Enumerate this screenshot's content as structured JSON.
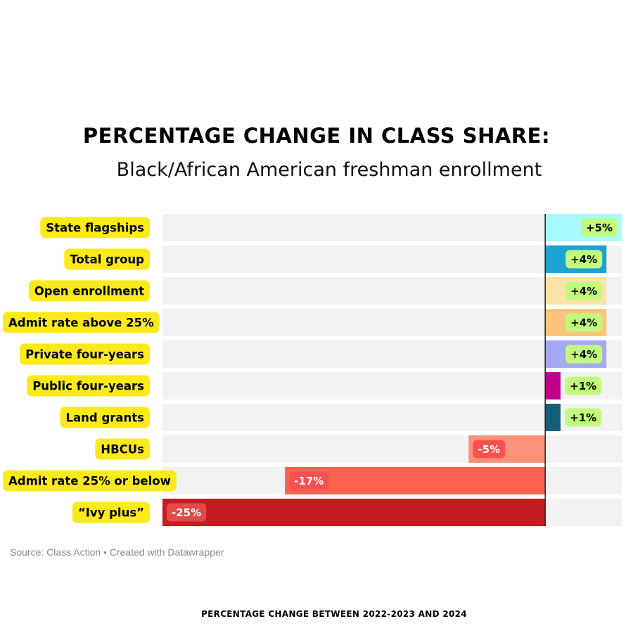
{
  "header": {
    "title": "PERCENTAGE CHANGE IN CLASS SHARE:",
    "subtitle": "Black/African American freshman enrollment"
  },
  "footer": {
    "source": "Source: Class Action • Created with Datawrapper",
    "note": "PERCENTAGE CHANGE BETWEEN 2022-2023 AND 2024"
  },
  "chart_data": {
    "type": "bar",
    "orientation": "horizontal",
    "title": "PERCENTAGE CHANGE IN CLASS SHARE:",
    "subtitle": "Black/African American freshman enrollment",
    "xlim": [
      -25,
      5
    ],
    "grid": false,
    "categories": [
      "State flagships",
      "Total group",
      "Open enrollment",
      "Admit rate above 25%",
      "Private four-years",
      "Public four-years",
      "Land grants",
      "HBCUs",
      "Admit rate 25% or below",
      "“Ivy plus”"
    ],
    "values": [
      5,
      4,
      4,
      4,
      4,
      1,
      1,
      -5,
      -17,
      -25
    ],
    "labels": [
      "+5%",
      "+4%",
      "+4%",
      "+4%",
      "+4%",
      "+1%",
      "+1%",
      "-5%",
      "-17%",
      "-25%"
    ],
    "colors": [
      "#a7fbff",
      "#1ca3d3",
      "#fce3a8",
      "#fdc57a",
      "#a5a9f3",
      "#c2008c",
      "#155f7d",
      "#fc9279",
      "#fd6150",
      "#c61c1f"
    ],
    "label_colors": {
      "positive_bg": "#c2fa7c",
      "negative_bg_light": "#f95050",
      "negative_bg_dark": "#e34a4a"
    },
    "category_label_bg": "#fbea1a"
  }
}
